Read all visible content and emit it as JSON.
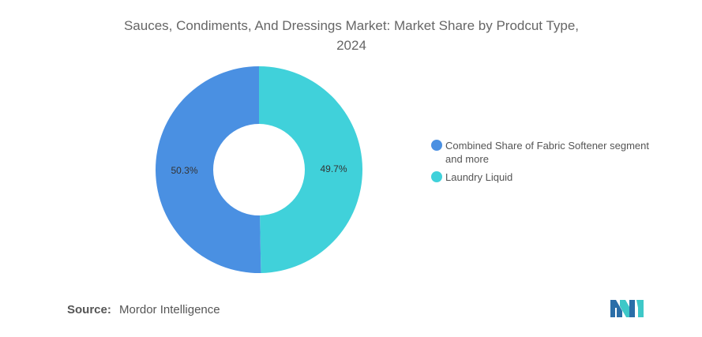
{
  "title_line1": "Sauces, Condiments, And Dressings Market: Market Share by Prodcut Type,",
  "title_line2": "2024",
  "chart_data": {
    "type": "pie",
    "donut": true,
    "title": "Sauces, Condiments, And Dressings Market: Market Share by Prodcut Type, 2024",
    "legend_position": "right",
    "slices": [
      {
        "name": "Combined Share of Fabric Softener segment and more",
        "value": 50.3,
        "label": "50.3%",
        "color": "#4a90e2"
      },
      {
        "name": "Laundry Liquid",
        "value": 49.7,
        "label": "49.7%",
        "color": "#40d1da"
      }
    ]
  },
  "source": {
    "label": "Source:",
    "value": "Mordor Intelligence"
  },
  "logo": {
    "icon": "mordor-intelligence-logo-icon",
    "colors": [
      "#2a6ea8",
      "#3ec8c8"
    ]
  }
}
